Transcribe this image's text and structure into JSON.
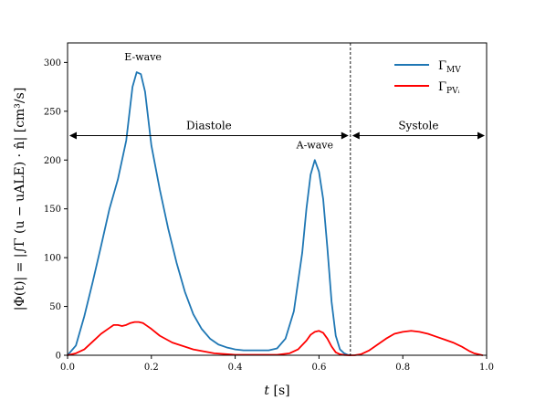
{
  "chart_data": {
    "type": "line",
    "xlabel_symbol": "t",
    "xlabel_unit": "[s]",
    "ylabel": "|Φ(t)| = |∫Γ (u − uALE) · n̂| [cm³/s]",
    "xlim": [
      0.0,
      1.0
    ],
    "ylim": [
      0,
      320
    ],
    "xticks": [
      0.0,
      0.2,
      0.4,
      0.6,
      0.8,
      1.0
    ],
    "xtick_labels": [
      "0.0",
      "0.2",
      "0.4",
      "0.6",
      "0.8",
      "1.0"
    ],
    "yticks": [
      0,
      50,
      100,
      150,
      200,
      250,
      300
    ],
    "ytick_labels": [
      "0",
      "50",
      "100",
      "150",
      "200",
      "250",
      "300"
    ],
    "grid": false,
    "legend_position": "top-right",
    "series": [
      {
        "name": "Γ_MV",
        "legend_main": "Γ",
        "legend_sub": "MV",
        "color": "#1f77b4",
        "x": [
          0.0,
          0.02,
          0.04,
          0.06,
          0.08,
          0.1,
          0.12,
          0.14,
          0.155,
          0.165,
          0.175,
          0.185,
          0.2,
          0.22,
          0.24,
          0.26,
          0.28,
          0.3,
          0.32,
          0.34,
          0.36,
          0.38,
          0.4,
          0.42,
          0.44,
          0.46,
          0.48,
          0.5,
          0.52,
          0.54,
          0.56,
          0.57,
          0.58,
          0.59,
          0.6,
          0.61,
          0.62,
          0.63,
          0.64,
          0.65,
          0.66,
          0.668,
          0.675
        ],
        "y": [
          0,
          10,
          40,
          75,
          112,
          150,
          180,
          220,
          275,
          290,
          288,
          270,
          215,
          170,
          130,
          95,
          65,
          42,
          27,
          17,
          11,
          8,
          6,
          5,
          5,
          5,
          5,
          7,
          17,
          45,
          105,
          150,
          185,
          200,
          188,
          160,
          110,
          55,
          20,
          6,
          2,
          0.5,
          0
        ]
      },
      {
        "name": "Γ_PVi",
        "legend_main": "Γ",
        "legend_sub": "PVᵢ",
        "color": "#ff0000",
        "x": [
          0.0,
          0.02,
          0.04,
          0.06,
          0.08,
          0.1,
          0.11,
          0.12,
          0.13,
          0.14,
          0.15,
          0.16,
          0.17,
          0.18,
          0.19,
          0.2,
          0.22,
          0.25,
          0.3,
          0.35,
          0.4,
          0.45,
          0.5,
          0.53,
          0.55,
          0.57,
          0.58,
          0.59,
          0.6,
          0.61,
          0.62,
          0.63,
          0.64,
          0.65,
          0.66,
          0.67,
          0.675,
          0.685,
          0.7,
          0.72,
          0.74,
          0.76,
          0.78,
          0.8,
          0.82,
          0.84,
          0.86,
          0.88,
          0.9,
          0.92,
          0.94,
          0.96,
          0.97,
          0.98,
          0.99
        ],
        "y": [
          0,
          2,
          6,
          14,
          22,
          28,
          31,
          31,
          30,
          31,
          33,
          34,
          34,
          33,
          30,
          27,
          20,
          13,
          6,
          2,
          0.5,
          0.5,
          0.5,
          2,
          6,
          15,
          21,
          24,
          25,
          23,
          17,
          9,
          3,
          1,
          0.3,
          0,
          0,
          0,
          1,
          5,
          11,
          17,
          22,
          24,
          25,
          24,
          22,
          19,
          16,
          13,
          9,
          4,
          2,
          1,
          0
        ]
      }
    ],
    "annotations": [
      {
        "text": "E-wave",
        "x": 0.18,
        "y": 302
      },
      {
        "text": "A-wave",
        "x": 0.59,
        "y": 212
      }
    ],
    "regions": [
      {
        "label": "Diastole",
        "x_start": 0.0,
        "x_end": 0.675,
        "y": 225
      },
      {
        "label": "Systole",
        "x_start": 0.675,
        "x_end": 1.0,
        "y": 225
      }
    ],
    "divider_x": 0.675
  }
}
